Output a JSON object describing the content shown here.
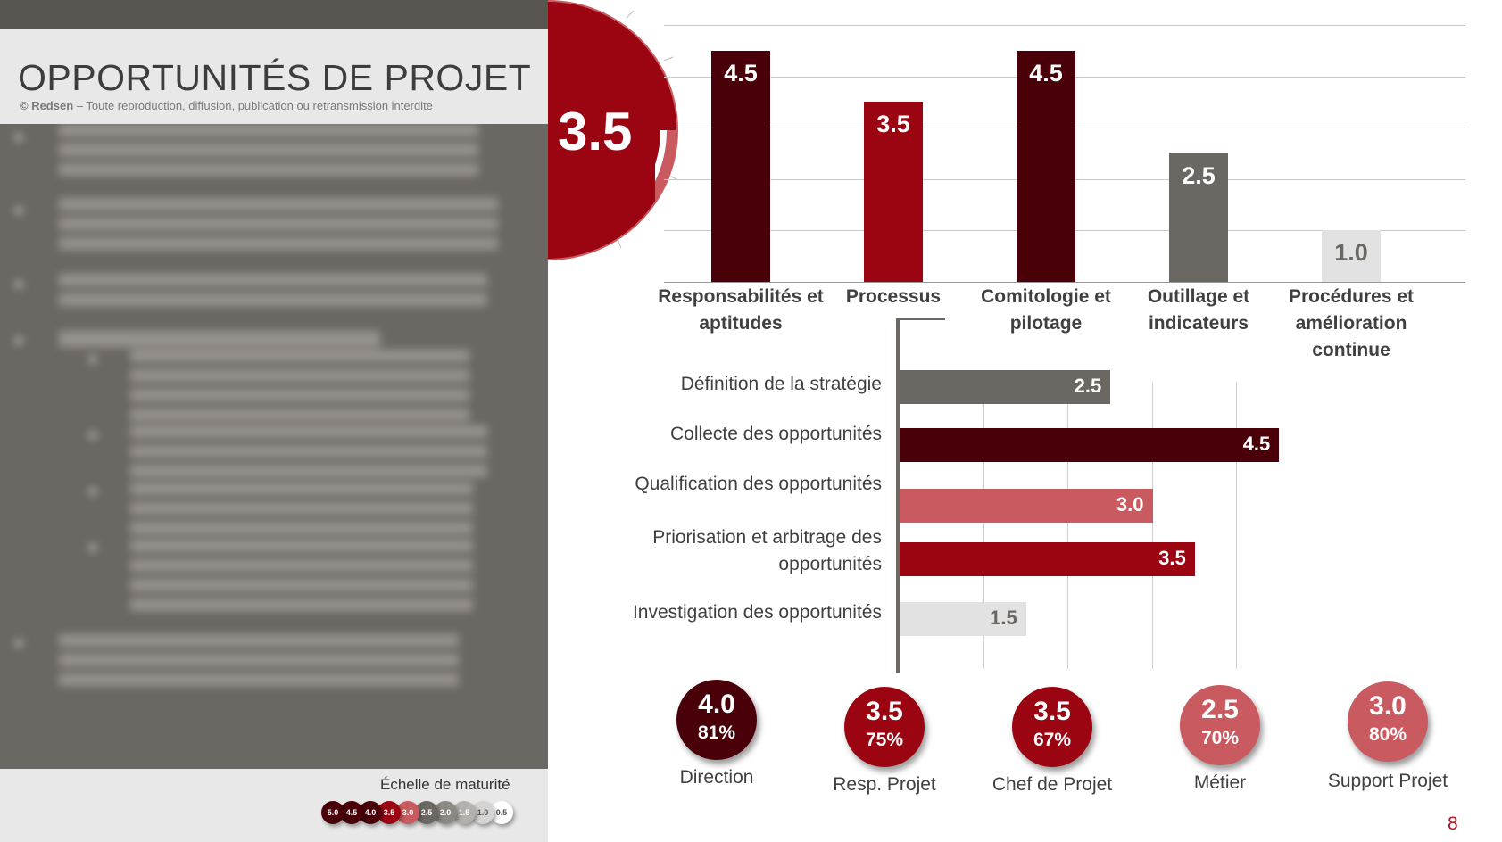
{
  "header": {
    "title": "OPPORTUNITÉS DE PROJET",
    "copyright_brand": "© Redsen",
    "copyright_text": " – Toute reproduction, diffusion, publication ou retransmission interdite"
  },
  "overall_score": "3.5",
  "maturity_scale": {
    "label": "Échelle de maturité",
    "levels": [
      "5.0",
      "4.5",
      "4.0",
      "3.5",
      "3.0",
      "2.5",
      "2.0",
      "1.5",
      "1.0",
      "0.5"
    ]
  },
  "page_number": "8",
  "chart_data": [
    {
      "type": "bar",
      "categories": [
        "Responsabilités et aptitudes",
        "Processus",
        "Comitologie et pilotage",
        "Outillage et indicateurs",
        "Procédures et amélioration continue"
      ],
      "values": [
        4.5,
        3.5,
        4.5,
        2.5,
        1.0
      ],
      "value_labels": [
        "4.5",
        "3.5",
        "4.5",
        "2.5",
        "1.0"
      ],
      "ylim": [
        0,
        5
      ],
      "grid": true,
      "colors": [
        "#4a0009",
        "#9b0512",
        "#4a0009",
        "#6b6762",
        "#e2e2e2"
      ],
      "label_colors": [
        "#ffffff",
        "#ffffff",
        "#ffffff",
        "#ffffff",
        "#6b6762"
      ]
    },
    {
      "type": "bar",
      "orientation": "horizontal",
      "categories": [
        "Définition de la stratégie",
        "Collecte des opportunités",
        "Qualification des opportunités",
        "Priorisation et arbitrage des opportunités",
        "Investigation des opportunités"
      ],
      "values": [
        2.5,
        4.5,
        3.0,
        3.5,
        1.5
      ],
      "value_labels": [
        "2.5",
        "4.5",
        "3.0",
        "3.5",
        "1.5"
      ],
      "xlim": [
        0,
        5
      ],
      "grid": true,
      "colors": [
        "#6b6762",
        "#4a0009",
        "#c95a60",
        "#9b0512",
        "#e2e2e2"
      ],
      "label_colors": [
        "#ffffff",
        "#ffffff",
        "#ffffff",
        "#ffffff",
        "#6b6762"
      ]
    },
    {
      "type": "table",
      "stakeholders": [
        {
          "name": "Direction",
          "score": "4.0",
          "pct": "81%",
          "color": "#4a0009"
        },
        {
          "name": "Resp. Projet",
          "score": "3.5",
          "pct": "75%",
          "color": "#9b0512"
        },
        {
          "name": "Chef de Projet",
          "score": "3.5",
          "pct": "67%",
          "color": "#9b0512"
        },
        {
          "name": "Métier",
          "score": "2.5",
          "pct": "70%",
          "color": "#c95a60"
        },
        {
          "name": "Support Projet",
          "score": "3.0",
          "pct": "80%",
          "color": "#c95a60"
        }
      ]
    }
  ]
}
